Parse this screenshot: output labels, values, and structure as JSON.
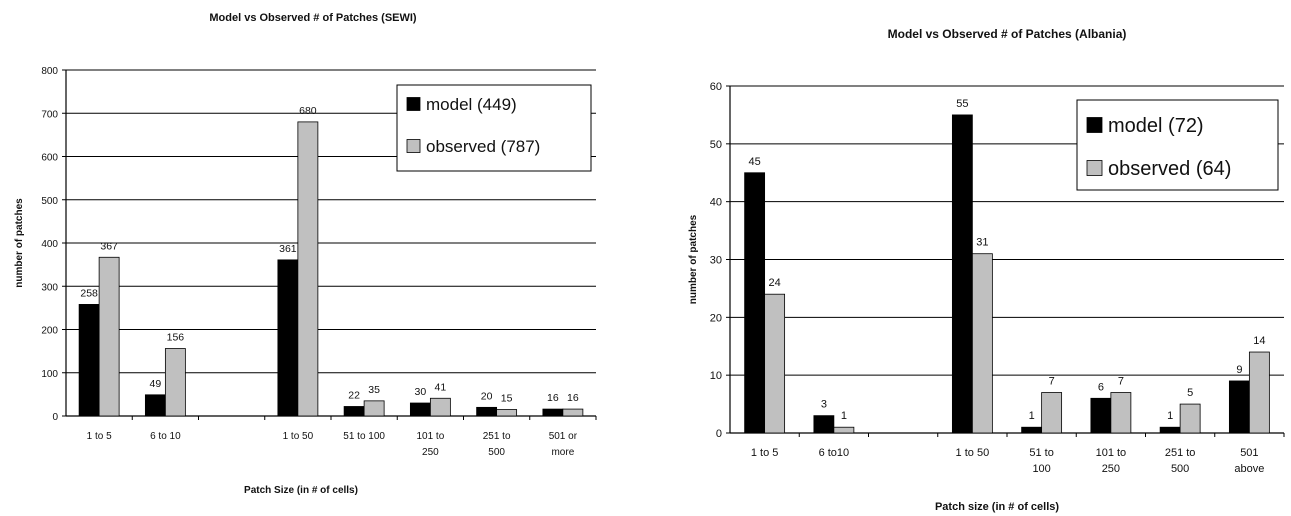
{
  "chart_data": [
    {
      "type": "bar",
      "title": "Model vs Observed # of Patches (SEWI)",
      "xlabel": "Patch Size (in # of cells)",
      "ylabel": "number of patches",
      "ylim": [
        0,
        800
      ],
      "yticks": [
        0,
        100,
        200,
        300,
        400,
        500,
        600,
        700,
        800
      ],
      "grid": true,
      "legend_position": "top-right",
      "categories": [
        [
          "1 to 5"
        ],
        [
          "6 to 10"
        ],
        [
          ""
        ],
        [
          "1 to 50"
        ],
        [
          "51 to 100"
        ],
        [
          "101 to",
          "250"
        ],
        [
          "251 to",
          "500"
        ],
        [
          "501 or",
          "more"
        ]
      ],
      "series": [
        {
          "name": "model (449)",
          "color": "#000000",
          "values": [
            258,
            49,
            null,
            361,
            22,
            30,
            20,
            16
          ],
          "labels": [
            "258",
            "49",
            "",
            "361",
            "22",
            "30",
            "20",
            "16"
          ]
        },
        {
          "name": "observed (787)",
          "color": "#c0c0c0",
          "values": [
            367,
            156,
            null,
            680,
            35,
            41,
            15,
            16
          ],
          "labels": [
            "367",
            "156",
            "",
            "680",
            "35",
            "41",
            "15",
            "16"
          ]
        }
      ]
    },
    {
      "type": "bar",
      "title": "Model vs Observed # of Patches (Albania)",
      "xlabel": "Patch size (in # of cells)",
      "ylabel": "number of patches",
      "ylim": [
        0,
        60
      ],
      "yticks": [
        0,
        10,
        20,
        30,
        40,
        50,
        60
      ],
      "grid": true,
      "legend_position": "top-right",
      "categories": [
        [
          "1 to 5"
        ],
        [
          "6 to10"
        ],
        [
          ""
        ],
        [
          "1 to 50"
        ],
        [
          "51 to",
          "100"
        ],
        [
          "101 to",
          "250"
        ],
        [
          "251 to",
          "500"
        ],
        [
          "501",
          "above"
        ]
      ],
      "series": [
        {
          "name": "model (72)",
          "color": "#000000",
          "values": [
            45,
            3,
            null,
            55,
            1,
            6,
            1,
            9
          ],
          "labels": [
            "45",
            "3",
            "",
            "55",
            "1",
            "6",
            "1",
            "9"
          ]
        },
        {
          "name": "observed (64)",
          "color": "#c0c0c0",
          "values": [
            24,
            1,
            null,
            31,
            7,
            7,
            5,
            14
          ],
          "labels": [
            "24",
            "1",
            "",
            "31",
            "7",
            "7",
            "5",
            "14"
          ]
        }
      ]
    }
  ]
}
